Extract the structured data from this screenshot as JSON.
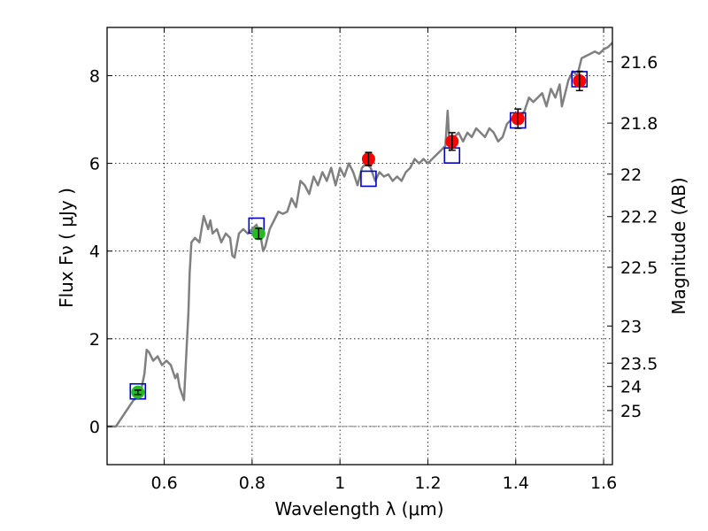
{
  "chart_data": {
    "type": "scatter",
    "title": "",
    "xlabel": "Wavelength  λ (μm)",
    "ylabel": "Flux  Fν  ( μJy )",
    "y2label": "Magnitude (AB)",
    "xlim": [
      0.47,
      1.62
    ],
    "ylim": [
      -0.87,
      9.1
    ],
    "grid": true,
    "xticks": [
      0.6,
      0.8,
      1.0,
      1.2,
      1.4,
      1.6
    ],
    "xtick_labels": [
      "0.6",
      "0.8",
      "1",
      "1.2",
      "1.4",
      "1.6"
    ],
    "yticks": [
      0,
      2,
      4,
      6,
      8
    ],
    "ytick_labels": [
      "0",
      "2",
      "4",
      "6",
      "8"
    ],
    "mag_ticks": [
      21.6,
      21.8,
      22,
      22.2,
      22.5,
      23,
      23.5,
      24,
      25
    ],
    "mag_tick_labels": [
      "21.6",
      "21.8",
      "22",
      "22.2",
      "22.5",
      "23",
      "23.5",
      "24",
      "25"
    ],
    "zero_line": 0,
    "series": [
      {
        "name": "model_spectrum",
        "kind": "line",
        "color": "#808080",
        "x": [
          0.47,
          0.49,
          0.51,
          0.53,
          0.545,
          0.555,
          0.56,
          0.565,
          0.575,
          0.585,
          0.595,
          0.605,
          0.615,
          0.625,
          0.63,
          0.635,
          0.645,
          0.655,
          0.658,
          0.662,
          0.67,
          0.68,
          0.69,
          0.7,
          0.705,
          0.71,
          0.72,
          0.73,
          0.74,
          0.75,
          0.755,
          0.76,
          0.77,
          0.78,
          0.79,
          0.8,
          0.81,
          0.82,
          0.825,
          0.83,
          0.84,
          0.85,
          0.86,
          0.87,
          0.88,
          0.89,
          0.9,
          0.91,
          0.92,
          0.93,
          0.94,
          0.95,
          0.96,
          0.97,
          0.98,
          0.99,
          1.0,
          1.01,
          1.02,
          1.03,
          1.04,
          1.05,
          1.06,
          1.07,
          1.08,
          1.09,
          1.1,
          1.11,
          1.12,
          1.13,
          1.14,
          1.15,
          1.16,
          1.17,
          1.18,
          1.19,
          1.2,
          1.21,
          1.22,
          1.23,
          1.24,
          1.245,
          1.25,
          1.255,
          1.26,
          1.27,
          1.28,
          1.29,
          1.3,
          1.31,
          1.32,
          1.33,
          1.34,
          1.35,
          1.36,
          1.37,
          1.38,
          1.39,
          1.4,
          1.41,
          1.42,
          1.43,
          1.44,
          1.45,
          1.46,
          1.47,
          1.48,
          1.49,
          1.5,
          1.505,
          1.51,
          1.52,
          1.53,
          1.54,
          1.55,
          1.56,
          1.57,
          1.58,
          1.59,
          1.6,
          1.61,
          1.62
        ],
        "y": [
          0,
          0,
          0.3,
          0.6,
          0.7,
          1.2,
          1.75,
          1.7,
          1.5,
          1.6,
          1.4,
          1.5,
          1.4,
          1.1,
          1.2,
          0.9,
          0.6,
          2.6,
          3.5,
          4.2,
          4.3,
          4.2,
          4.8,
          4.5,
          4.7,
          4.4,
          4.5,
          4.2,
          4.4,
          4.3,
          3.9,
          3.85,
          4.4,
          4.5,
          4.4,
          4.5,
          4.6,
          4.3,
          4.0,
          4.1,
          4.5,
          4.7,
          4.9,
          4.85,
          4.9,
          5.2,
          5.0,
          5.6,
          5.5,
          5.3,
          5.7,
          5.5,
          5.8,
          5.6,
          5.9,
          5.5,
          5.9,
          5.7,
          6.0,
          5.8,
          5.5,
          5.9,
          6.0,
          5.9,
          5.6,
          5.8,
          5.7,
          5.75,
          5.6,
          5.7,
          5.6,
          5.8,
          5.9,
          6.1,
          6.0,
          6.1,
          6.0,
          6.1,
          6.2,
          6.3,
          6.4,
          7.2,
          6.3,
          6.5,
          6.6,
          6.7,
          6.5,
          6.7,
          6.6,
          6.8,
          6.7,
          6.6,
          6.8,
          6.7,
          6.5,
          6.6,
          6.9,
          7.0,
          7.1,
          7.0,
          7.2,
          7.5,
          7.4,
          7.5,
          7.6,
          7.3,
          7.7,
          7.5,
          7.8,
          7.3,
          7.5,
          7.9,
          8.1,
          8.0,
          8.4,
          8.45,
          8.5,
          8.55,
          8.5,
          8.6,
          8.65,
          8.75
        ]
      },
      {
        "name": "model_band_fluxes",
        "kind": "open-square",
        "color": "#0000cc",
        "x": [
          0.54,
          0.81,
          1.065,
          1.255,
          1.405,
          1.545
        ],
        "y": [
          0.8,
          4.58,
          5.65,
          6.18,
          6.98,
          7.92
        ]
      },
      {
        "name": "observed_optical",
        "kind": "circle-errorbar",
        "color": "#22bb22",
        "x": [
          0.54,
          0.815
        ],
        "y": [
          0.78,
          4.4
        ],
        "yerr": [
          0.05,
          0.12
        ]
      },
      {
        "name": "observed_nir",
        "kind": "circle-errorbar",
        "color": "#ff0000",
        "x": [
          1.065,
          1.255,
          1.405,
          1.545
        ],
        "y": [
          6.1,
          6.5,
          7.02,
          7.88
        ],
        "yerr": [
          0.15,
          0.2,
          0.22,
          0.22
        ]
      }
    ]
  }
}
